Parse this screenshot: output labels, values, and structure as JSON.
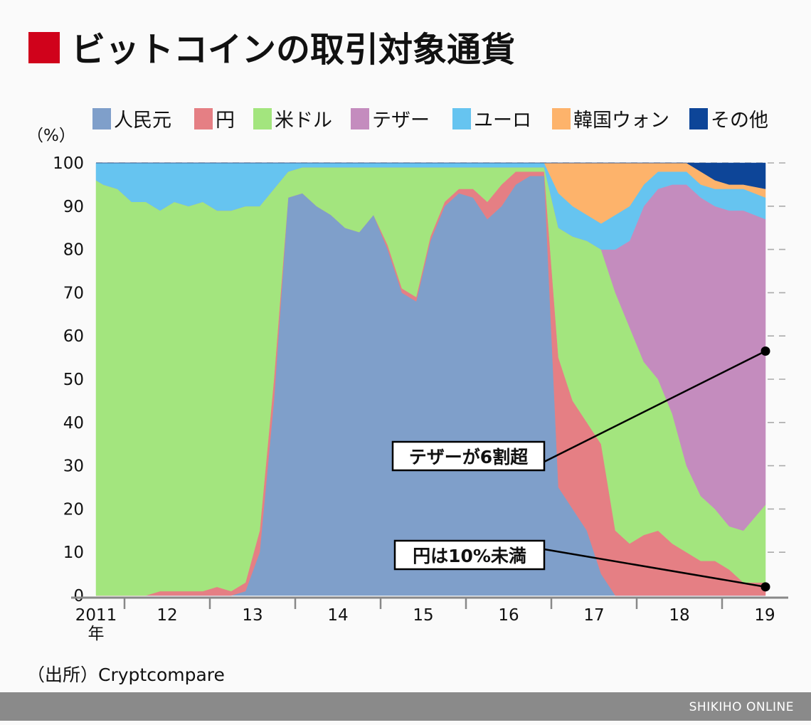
{
  "title": "ビットコインの取引対象通貨",
  "source": "（出所）Cryptcompare",
  "footer": "SHIKIHO ONLINE",
  "title_mark_color": "#d0021b",
  "chart_data": {
    "type": "area",
    "stacked": true,
    "ylabel": "（%）",
    "ylim": [
      0,
      100
    ],
    "yticks": [
      "0",
      "10",
      "20",
      "30",
      "40",
      "50",
      "60",
      "70",
      "80",
      "90",
      "100"
    ],
    "xticks": [
      "2011",
      "12",
      "13",
      "14",
      "15",
      "16",
      "17",
      "18",
      "19"
    ],
    "xtick_first_suffix": "年",
    "grid": "horizontal-dashed",
    "legend_position": "top",
    "series": [
      {
        "name": "人民元",
        "color": "#7f9fca"
      },
      {
        "name": "円",
        "color": "#e57f84"
      },
      {
        "name": "米ドル",
        "color": "#a3e57e"
      },
      {
        "name": "テザー",
        "color": "#c48cbe"
      },
      {
        "name": "ユーロ",
        "color": "#66c4f0"
      },
      {
        "name": "韓国ウォン",
        "color": "#fdb36b"
      },
      {
        "name": "その他",
        "color": "#0d4598"
      }
    ],
    "dates": [
      "2011-08",
      "2011-10",
      "2011-12",
      "2012-02",
      "2012-04",
      "2012-06",
      "2012-08",
      "2012-10",
      "2012-12",
      "2013-02",
      "2013-04",
      "2013-06",
      "2013-08",
      "2013-10",
      "2013-12",
      "2014-02",
      "2014-04",
      "2014-06",
      "2014-08",
      "2014-10",
      "2014-12",
      "2015-02",
      "2015-04",
      "2015-06",
      "2015-08",
      "2015-10",
      "2015-12",
      "2016-02",
      "2016-04",
      "2016-06",
      "2016-08",
      "2016-10",
      "2016-12",
      "2017-02",
      "2017-04",
      "2017-06",
      "2017-08",
      "2017-10",
      "2017-12",
      "2018-02",
      "2018-04",
      "2018-06",
      "2018-08",
      "2018-10",
      "2018-12",
      "2019-02",
      "2019-04",
      "2019-06"
    ],
    "values": [
      [
        0,
        0,
        96,
        0,
        4,
        0,
        0
      ],
      [
        0,
        0,
        95,
        0,
        5,
        0,
        0
      ],
      [
        0,
        0,
        94,
        0,
        6,
        0,
        0
      ],
      [
        0,
        0,
        91,
        0,
        9,
        0,
        0
      ],
      [
        0,
        0,
        91,
        0,
        9,
        0,
        0
      ],
      [
        0,
        1,
        88,
        0,
        11,
        0,
        0
      ],
      [
        0,
        1,
        90,
        0,
        9,
        0,
        0
      ],
      [
        0,
        1,
        89,
        0,
        10,
        0,
        0
      ],
      [
        0,
        1,
        90,
        0,
        9,
        0,
        0
      ],
      [
        0,
        2,
        87,
        0,
        11,
        0,
        0
      ],
      [
        0,
        1,
        88,
        0,
        11,
        0,
        0
      ],
      [
        1,
        2,
        87,
        0,
        10,
        0,
        0
      ],
      [
        10,
        5,
        75,
        0,
        10,
        0,
        0
      ],
      [
        45,
        5,
        44,
        0,
        6,
        0,
        0
      ],
      [
        92,
        0,
        6,
        0,
        2,
        0,
        0
      ],
      [
        93,
        0,
        6,
        0,
        1,
        0,
        0
      ],
      [
        90,
        0,
        9,
        0,
        1,
        0,
        0
      ],
      [
        88,
        0,
        11,
        0,
        1,
        0,
        0
      ],
      [
        85,
        0,
        14,
        0,
        1,
        0,
        0
      ],
      [
        84,
        0,
        15,
        0,
        1,
        0,
        0
      ],
      [
        88,
        0,
        11,
        0,
        1,
        0,
        0
      ],
      [
        80,
        1,
        18,
        0,
        1,
        0,
        0
      ],
      [
        70,
        1,
        28,
        0,
        1,
        0,
        0
      ],
      [
        68,
        1,
        30,
        0,
        1,
        0,
        0
      ],
      [
        82,
        1,
        16,
        0,
        1,
        0,
        0
      ],
      [
        90,
        1,
        8,
        0,
        1,
        0,
        0
      ],
      [
        93,
        1,
        5,
        0,
        1,
        0,
        0
      ],
      [
        92,
        2,
        5,
        0,
        1,
        0,
        0
      ],
      [
        87,
        4,
        8,
        0,
        1,
        0,
        0
      ],
      [
        90,
        5,
        4,
        0,
        1,
        0,
        0
      ],
      [
        95,
        3,
        1,
        0,
        1,
        0,
        0
      ],
      [
        97,
        1,
        1,
        0,
        1,
        0,
        0
      ],
      [
        97,
        1,
        1,
        0,
        1,
        0,
        0
      ],
      [
        25,
        30,
        30,
        0,
        8,
        7,
        0
      ],
      [
        20,
        25,
        38,
        0,
        7,
        10,
        0
      ],
      [
        15,
        25,
        42,
        0,
        6,
        12,
        0
      ],
      [
        5,
        30,
        45,
        0,
        6,
        14,
        0
      ],
      [
        0,
        15,
        55,
        10,
        8,
        12,
        0
      ],
      [
        0,
        12,
        50,
        20,
        8,
        10,
        0
      ],
      [
        0,
        14,
        40,
        36,
        5,
        5,
        0
      ],
      [
        0,
        15,
        35,
        44,
        4,
        2,
        0
      ],
      [
        0,
        12,
        30,
        53,
        3,
        2,
        0
      ],
      [
        0,
        10,
        20,
        65,
        3,
        2,
        0
      ],
      [
        0,
        8,
        15,
        69,
        3,
        3,
        2
      ],
      [
        0,
        8,
        12,
        70,
        4,
        2,
        4
      ],
      [
        0,
        6,
        10,
        73,
        5,
        1,
        5
      ],
      [
        0,
        3,
        12,
        74,
        5,
        1,
        5
      ],
      [
        0,
        3,
        18,
        66,
        5,
        2,
        6
      ]
    ],
    "annotations": [
      {
        "text": "テザーが6割超",
        "date": "2019-06",
        "value": 56.5
      },
      {
        "text": "円は10%未満",
        "date": "2019-06",
        "value": 2
      }
    ]
  }
}
